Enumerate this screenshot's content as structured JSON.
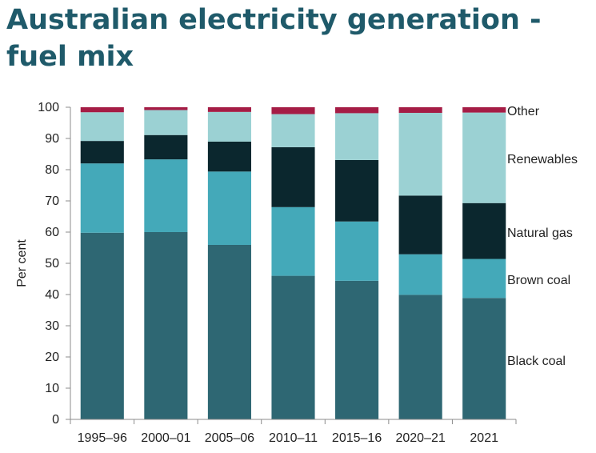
{
  "chart_data": {
    "type": "bar",
    "stacked": true,
    "title": "Australian electricity generation - fuel mix",
    "ylabel": "Per cent",
    "xlabel": "",
    "ylim": [
      0,
      100
    ],
    "yticks": [
      0,
      10,
      20,
      30,
      40,
      50,
      60,
      70,
      80,
      90,
      100
    ],
    "categories": [
      "1995–96",
      "2000–01",
      "2005–06",
      "2010–11",
      "2015–16",
      "2020–21",
      "2021"
    ],
    "series": [
      {
        "name": "Black coal",
        "color": "#2e6773",
        "values": [
          59.8,
          60.0,
          55.9,
          46.0,
          44.4,
          39.9,
          38.9
        ]
      },
      {
        "name": "Brown coal",
        "color": "#44a9b9",
        "values": [
          22.2,
          23.3,
          23.5,
          22.0,
          19.0,
          13.0,
          12.5
        ]
      },
      {
        "name": "Natural gas",
        "color": "#0b272e",
        "values": [
          7.2,
          7.8,
          9.6,
          19.2,
          19.7,
          18.8,
          17.9
        ]
      },
      {
        "name": "Renewables",
        "color": "#9bd1d3",
        "values": [
          9.2,
          8.0,
          9.5,
          10.6,
          15.0,
          26.5,
          29.0
        ]
      },
      {
        "name": "Other",
        "color": "#a51c45",
        "values": [
          1.6,
          0.9,
          1.5,
          2.2,
          1.9,
          1.8,
          1.7
        ]
      }
    ],
    "grid": false,
    "legend": "right, inline labels"
  }
}
